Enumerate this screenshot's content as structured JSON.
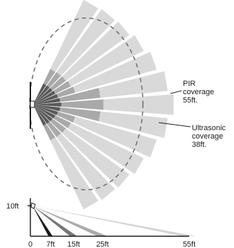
{
  "top_view": {
    "pir_label": [
      "PIR",
      "coverage",
      "55ft."
    ],
    "ultrasonic_label": [
      "Ultrasonic",
      "coverage",
      "38ft."
    ],
    "colors": {
      "pir_zone": "#d9d9d9",
      "near_zone": "#a9a9a9",
      "close_zone": "#595959",
      "ultrasonic_outline": "#707070",
      "line": "#1a1a1a"
    }
  },
  "side_view": {
    "height_label": "10ft",
    "x_ticks": [
      "0",
      "7ft",
      "15ft",
      "25ft",
      "55ft"
    ],
    "ray_ranges_ft": [
      7,
      15,
      25,
      55
    ],
    "ray_colors": [
      "#1a1a1a",
      "#777777",
      "#aaaaaa",
      "#d4d4d4"
    ]
  }
}
